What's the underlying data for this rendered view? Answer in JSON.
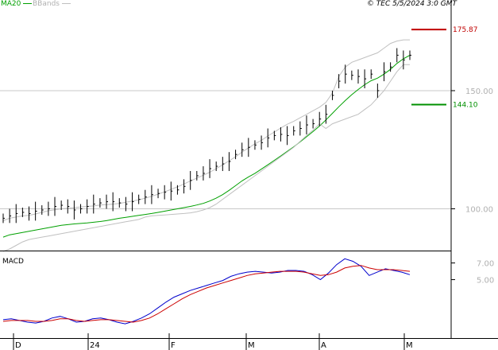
{
  "header": {
    "source": "© TEC 5/5/2024 3:0 GMT",
    "legend": [
      {
        "label": "MA20",
        "color": "#00a000"
      },
      {
        "label": "BBands",
        "color": "#c0c0c0"
      }
    ]
  },
  "colors": {
    "price": "#000000",
    "ma20": "#00a000",
    "bbands": "#c0c0c0",
    "resistance": "#c00000",
    "support": "#009000",
    "macd": "#0000cc",
    "signal": "#cc0000",
    "axis": "#000000",
    "gridline": "#c8c8c8"
  },
  "chart_data": [
    {
      "type": "line",
      "title": "",
      "x_ticks": [
        "D",
        "24",
        "F",
        "M",
        "A",
        "M"
      ],
      "y_ticks": [
        100.0,
        150.0
      ],
      "y_tick_labels": [
        "100.00",
        "150.00"
      ],
      "ylim": [
        83,
        185
      ],
      "grid": "horizontal",
      "levels": [
        {
          "name": "resistance",
          "value": 175.87,
          "label": "175.87"
        },
        {
          "name": "support",
          "value": 144.1,
          "label": "144.10"
        }
      ],
      "series": [
        {
          "name": "MA20",
          "values": [
            88,
            89,
            89.5,
            90,
            90.5,
            91,
            91.5,
            92,
            92.5,
            93,
            93.3,
            93.6,
            93.8,
            94,
            94.3,
            94.6,
            95,
            95.5,
            96,
            96.4,
            96.8,
            97.2,
            97.6,
            98,
            98.5,
            99,
            99.5,
            100,
            100.5,
            101,
            101.6,
            102.3,
            103.3,
            104.5,
            106,
            107.8,
            109.8,
            111.8,
            113.5,
            115,
            116.8,
            118.6,
            120.5,
            122.4,
            124.3,
            126.2,
            128.3,
            130.5,
            132.7,
            135,
            137.6,
            140.4,
            143.2,
            145.8,
            148.3,
            150.5,
            152.5,
            154.2,
            155.3,
            157,
            159,
            161.5,
            163.5,
            165
          ]
        },
        {
          "name": "BBands upper",
          "values": [
            95,
            96,
            96.5,
            97,
            97.2,
            97.8,
            98.5,
            99.2,
            99.6,
            100,
            100.2,
            100.5,
            100.8,
            101,
            101.2,
            101.6,
            101.8,
            102,
            102.3,
            102.8,
            103.3,
            103.8,
            104.5,
            105.3,
            106.2,
            107.2,
            108.2,
            109.3,
            110.5,
            111.8,
            113,
            114.2,
            115.5,
            117,
            118.6,
            120.3,
            122,
            124,
            125.8,
            127.5,
            129,
            130.8,
            132.5,
            134.2,
            135.8,
            137,
            138.5,
            140,
            141.5,
            143,
            145,
            149,
            156,
            160,
            162,
            163,
            164,
            165,
            166,
            168,
            170,
            171,
            171.5,
            171.5
          ]
        },
        {
          "name": "BBands lower",
          "values": [
            82,
            83,
            84.5,
            86,
            87,
            87.5,
            88,
            88.5,
            89,
            89.5,
            90,
            90.5,
            91,
            91.5,
            92,
            92.5,
            93,
            93.5,
            94,
            94.5,
            95,
            95.5,
            96.5,
            97,
            97.2,
            97.4,
            97.6,
            97.8,
            98,
            98.3,
            98.8,
            99.5,
            100.5,
            102,
            104,
            106,
            108,
            110,
            112,
            114,
            116,
            118,
            120,
            122,
            124,
            126,
            128.5,
            131,
            133.3,
            136,
            134,
            136,
            137,
            138,
            139,
            140,
            142,
            144,
            147,
            150,
            154,
            158,
            161,
            161
          ]
        },
        {
          "name": "Price",
          "values": [
            96,
            97,
            98,
            98.5,
            98,
            99,
            99.5,
            100,
            101,
            101.5,
            101,
            99.5,
            100,
            101,
            102,
            102.5,
            103,
            103,
            102.5,
            102,
            103,
            104,
            105,
            106,
            106.5,
            107,
            107.5,
            108,
            109.5,
            112,
            114,
            115,
            117,
            118,
            119,
            120,
            123,
            125,
            126,
            127,
            128,
            130,
            131,
            131.5,
            131,
            133,
            134,
            135.5,
            136,
            138,
            140,
            148,
            154,
            157,
            156.5,
            156,
            155,
            157,
            150,
            158,
            160,
            165,
            163,
            165
          ]
        }
      ]
    },
    {
      "type": "line",
      "title": "MACD",
      "y_ticks": [
        5.0,
        7.0
      ],
      "y_tick_labels": [
        "5.00",
        "7.00"
      ],
      "ylim": [
        -1.72,
        8.2
      ],
      "series": [
        {
          "name": "MACD",
          "values": [
            0.2,
            0.3,
            0.1,
            -0.1,
            -0.2,
            0.0,
            0.4,
            0.6,
            0.3,
            -0.1,
            0.0,
            0.3,
            0.4,
            0.2,
            -0.1,
            -0.3,
            0.0,
            0.4,
            0.9,
            1.6,
            2.3,
            2.9,
            3.3,
            3.7,
            4.0,
            4.3,
            4.6,
            4.9,
            5.4,
            5.7,
            5.9,
            6.0,
            5.9,
            5.8,
            5.9,
            6.1,
            6.1,
            6.0,
            5.6,
            5.0,
            5.8,
            6.8,
            7.5,
            7.2,
            6.6,
            5.5,
            5.9,
            6.3,
            6.1,
            5.9,
            5.6
          ]
        },
        {
          "name": "Signal",
          "values": [
            0.0,
            0.1,
            0.1,
            0.1,
            0.0,
            0.0,
            0.1,
            0.3,
            0.3,
            0.1,
            0.0,
            0.1,
            0.2,
            0.2,
            0.1,
            0.0,
            -0.1,
            0.1,
            0.4,
            0.9,
            1.5,
            2.1,
            2.7,
            3.2,
            3.6,
            4.0,
            4.3,
            4.6,
            4.9,
            5.2,
            5.5,
            5.7,
            5.8,
            5.9,
            6.0,
            6.0,
            6.0,
            5.9,
            5.7,
            5.5,
            5.6,
            5.9,
            6.4,
            6.6,
            6.7,
            6.4,
            6.2,
            6.2,
            6.2,
            6.1,
            6.0
          ]
        }
      ]
    }
  ]
}
